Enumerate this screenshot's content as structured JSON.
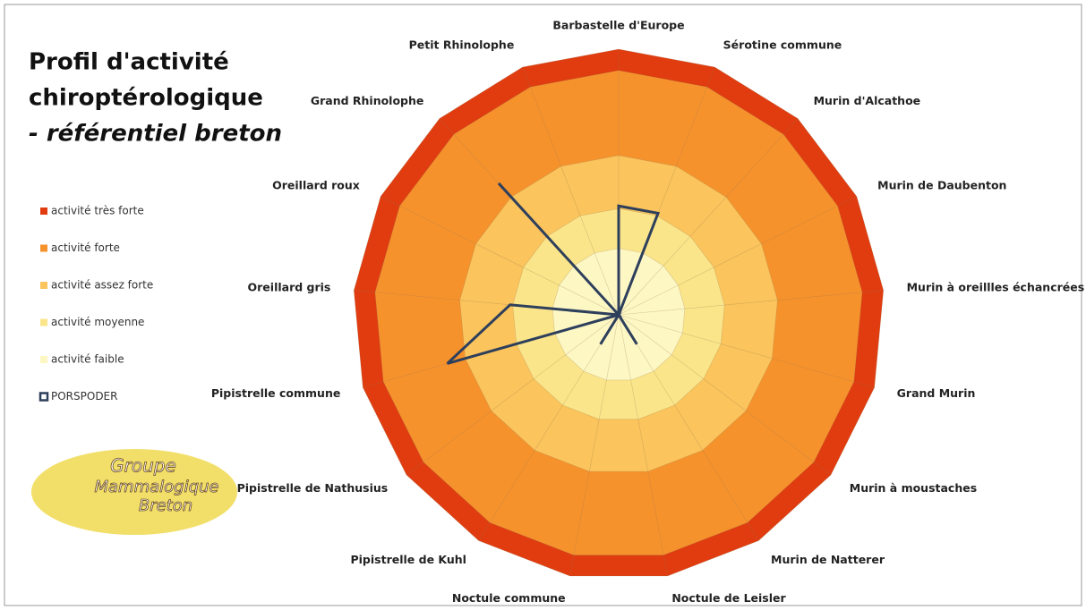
{
  "chart_data": {
    "type": "radar",
    "title_lines": [
      "Profil d'activité",
      "chiroptérologique",
      "- référentiel breton"
    ],
    "categories": [
      "Barbastelle d'Europe",
      "Sérotine commune",
      "Murin d'Alcathoe",
      "Murin de Daubenton",
      "Murin à oreillles échancrées",
      "Grand Murin",
      "Murin à moustaches",
      "Murin de Natterer",
      "Noctule de Leisler",
      "Noctule commune",
      "Pipistrelle de Kuhl",
      "Pipistrelle de Nathusius",
      "Pipistrelle commune",
      "Oreillard gris",
      "Oreillard roux",
      "Grand Rhinolophe",
      "Petit Rhinolophe"
    ],
    "rlim": [
      0,
      100
    ],
    "bands": [
      {
        "name": "activité faible",
        "color": "#fdf7c4",
        "value": 25
      },
      {
        "name": "activité moyenne",
        "color": "#fbe58a",
        "value": 15
      },
      {
        "name": "activité assez forte",
        "color": "#fbc45c",
        "value": 20
      },
      {
        "name": "activité forte",
        "color": "#f6922c",
        "value": 32
      },
      {
        "name": "activité très forte",
        "color": "#e03c10",
        "value": 8
      }
    ],
    "series": [
      {
        "name": "PORSPODER",
        "color": "#2e3f5c",
        "values": [
          41,
          41,
          0,
          0,
          0,
          0,
          0,
          13,
          0,
          0,
          13,
          0,
          67,
          41,
          0,
          67,
          0
        ]
      }
    ],
    "logo_lines": [
      "Groupe",
      "Mammalogique",
      "Breton"
    ]
  }
}
